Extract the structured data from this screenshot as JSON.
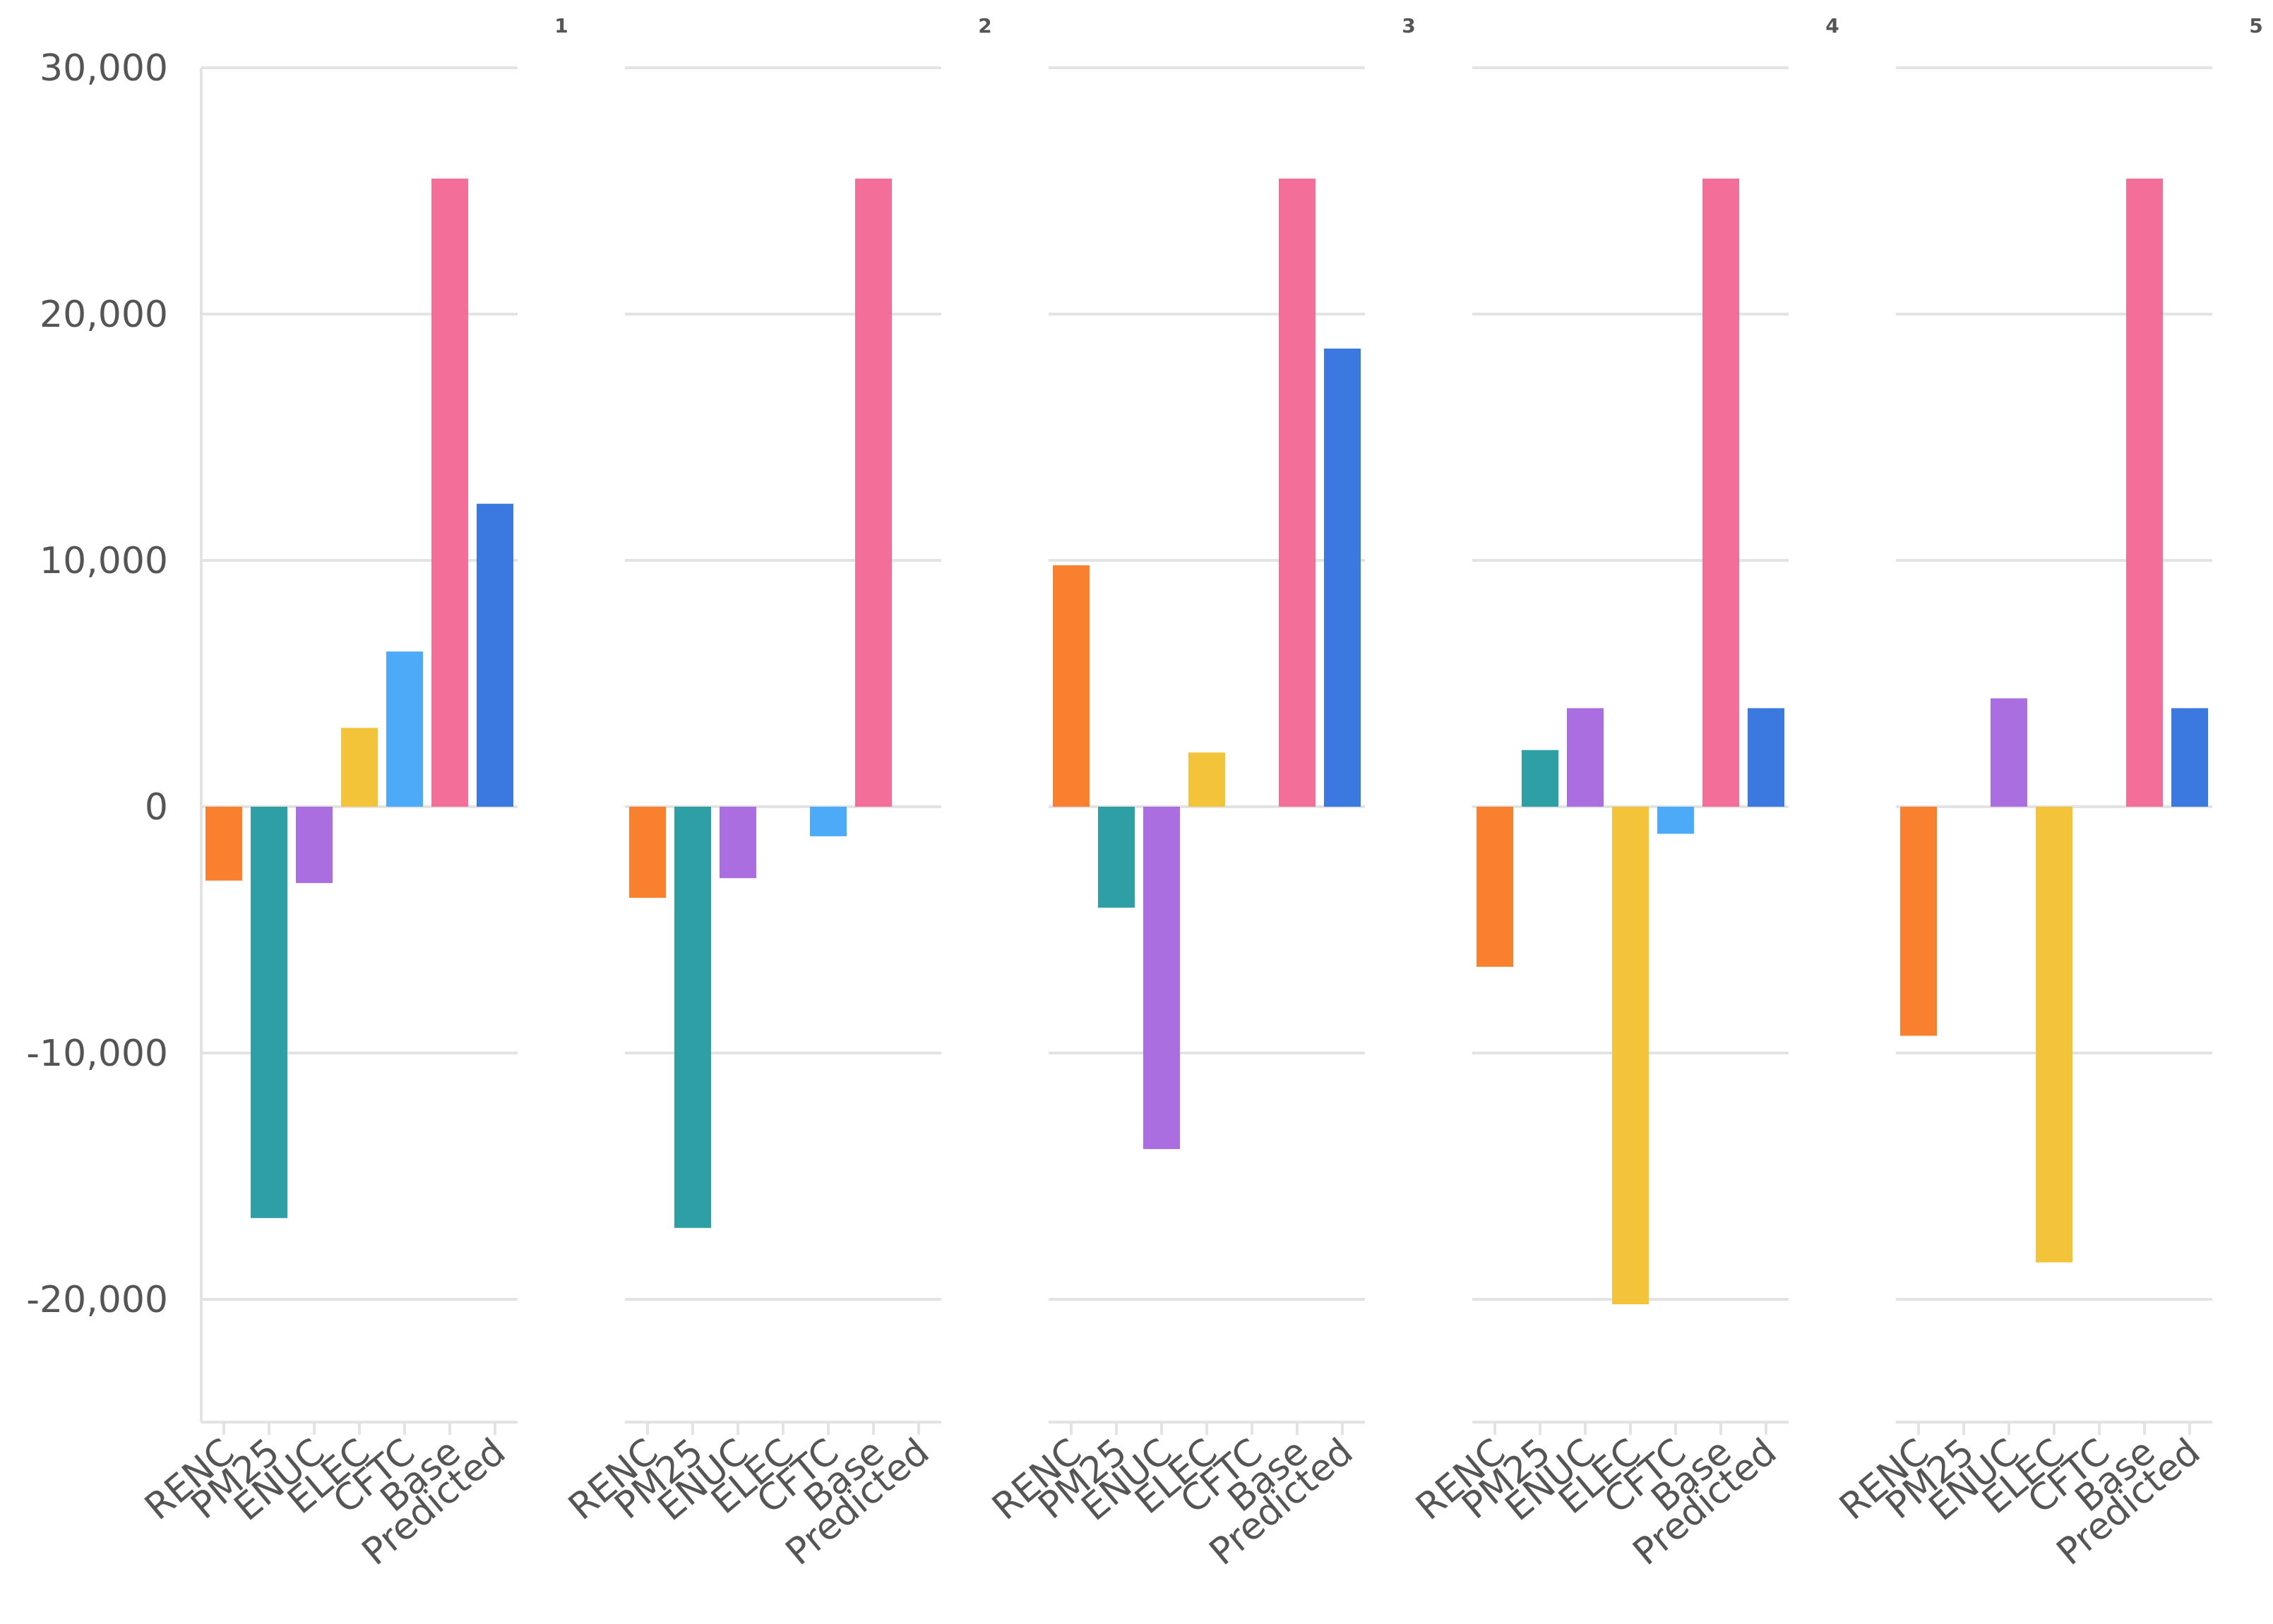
{
  "chart_data": {
    "type": "bar",
    "layout": "small-multiples",
    "categories": [
      "RENC",
      "PM25",
      "ENUC",
      "ELEC",
      "CFTC",
      "Base",
      "Predicted"
    ],
    "y_ticks": [
      "30,000",
      "20,000",
      "10,000",
      "0",
      "-10,000",
      "-20,000"
    ],
    "y_tick_values": [
      30000,
      20000,
      10000,
      0,
      -10000,
      -20000
    ],
    "ylim": [
      -25000,
      30000
    ],
    "grid": true,
    "colors": [
      "#f8802f",
      "#2f9fa6",
      "#aa6ee0",
      "#f3c33a",
      "#4daaf8",
      "#f36f9a",
      "#3b78e0"
    ],
    "panels": [
      {
        "label": "1",
        "values": [
          -3000,
          -16700,
          -3100,
          3200,
          6300,
          25500,
          12300
        ]
      },
      {
        "label": "2",
        "values": [
          -3700,
          -17100,
          -2900,
          0,
          -1200,
          25500,
          0
        ]
      },
      {
        "label": "3",
        "values": [
          9800,
          -4100,
          -13900,
          2200,
          0,
          25500,
          18600
        ]
      },
      {
        "label": "4",
        "values": [
          -6500,
          2300,
          4000,
          -20200,
          -1100,
          25500,
          4000
        ]
      },
      {
        "label": "5",
        "values": [
          -9300,
          0,
          4400,
          -18500,
          0,
          25500,
          4000
        ]
      }
    ]
  }
}
